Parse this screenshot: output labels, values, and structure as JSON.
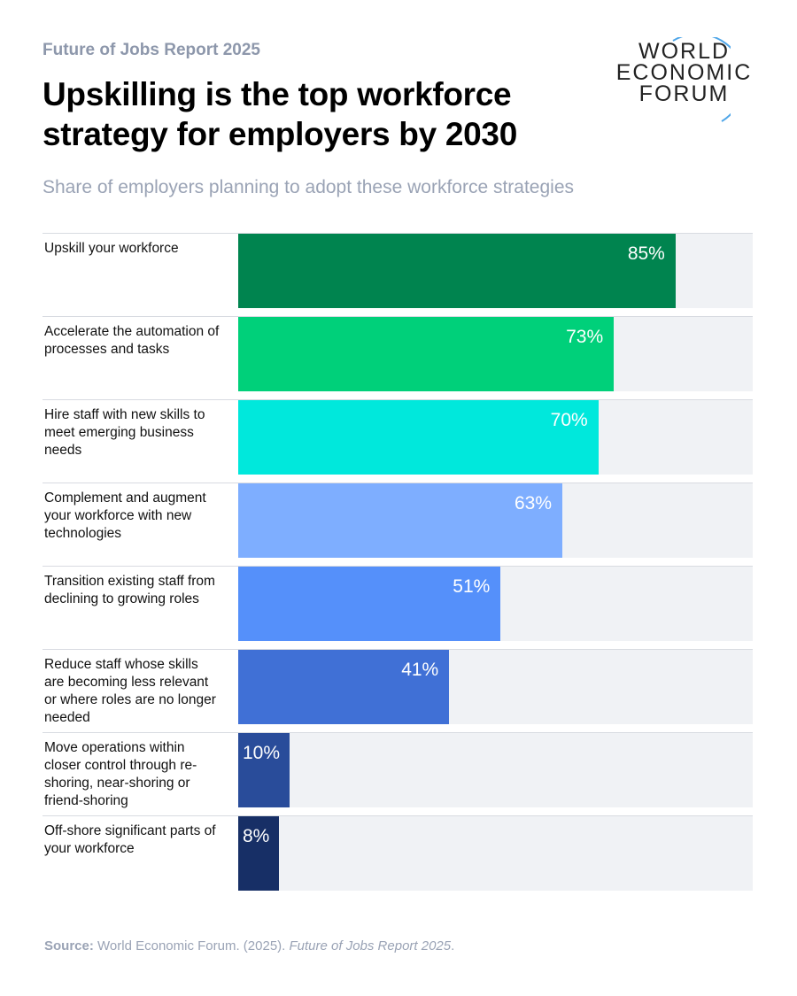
{
  "header": {
    "kicker": "Future of Jobs Report 2025",
    "logo": [
      "WORLD",
      "ECONOMIC",
      "FORUM"
    ]
  },
  "chart_data": {
    "type": "bar",
    "orientation": "horizontal",
    "title": "Upskilling is the top workforce strategy for employers by 2030",
    "subtitle": "Share of employers planning to adopt these workforce strategies",
    "categories": [
      "Upskill your workforce",
      "Accelerate the automation of processes and tasks",
      "Hire staff with new skills to meet emerging business needs",
      "Complement and augment your workforce with new technologies",
      "Transition existing staff from declining to growing roles",
      "Reduce staff whose skills are becoming less relevant or where roles are no longer needed",
      "Move operations within closer control through re-shoring, near-shoring or friend-shoring",
      "Off-shore significant parts of your workforce"
    ],
    "values": [
      85,
      73,
      70,
      63,
      51,
      41,
      10,
      8
    ],
    "value_labels": [
      "85%",
      "73%",
      "70%",
      "63%",
      "51%",
      "41%",
      "10%",
      "8%"
    ],
    "colors": [
      "#00844f",
      "#00d07a",
      "#00e8dc",
      "#7eaeff",
      "#5590fa",
      "#4070d6",
      "#294c9a",
      "#172f66"
    ],
    "xlim": [
      0,
      100
    ]
  },
  "source": {
    "label": "Source:",
    "text": "World Economic Forum. (2025). ",
    "publication": "Future of Jobs Report 2025",
    "end": "."
  }
}
